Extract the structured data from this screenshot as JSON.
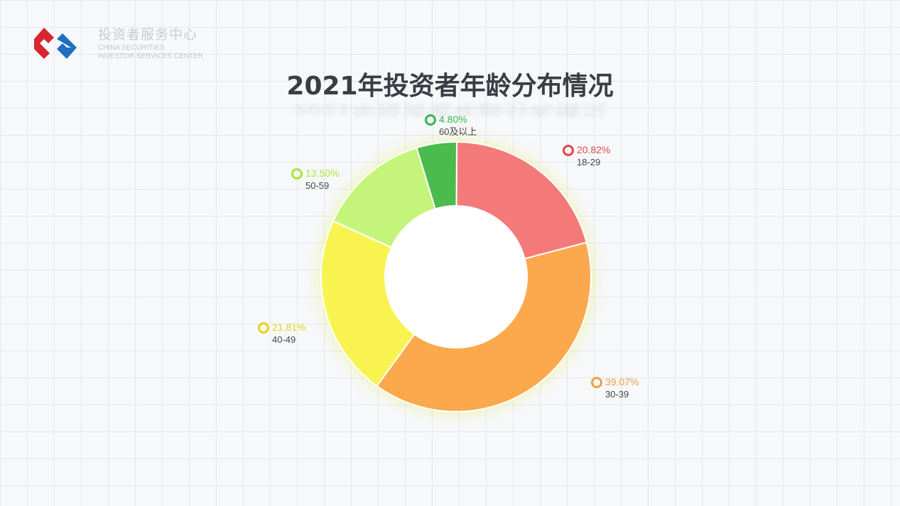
{
  "header": {
    "org_cn": "投资者服务中心",
    "org_en_1": "CHINA SECURITIES",
    "org_en_2": "INVESTOR SERVICES CENTER"
  },
  "chart_data": {
    "type": "pie",
    "donut": true,
    "title": "2021年投资者年龄分布情况",
    "categories": [
      "18-29",
      "30-39",
      "40-49",
      "50-59",
      "60及以上"
    ],
    "values": [
      20.82,
      39.07,
      21.81,
      13.5,
      4.8
    ],
    "value_labels": [
      "20.82%",
      "39.07%",
      "21.81%",
      "13.50%",
      "4.80%"
    ],
    "colors": [
      "#f47a7a",
      "#fca94e",
      "#f9f34f",
      "#c4f57a",
      "#4cbb4e"
    ],
    "label_colors": [
      "#e0474c",
      "#f0a042",
      "#e8d21a",
      "#a8e63c",
      "#3bb54a"
    ]
  }
}
